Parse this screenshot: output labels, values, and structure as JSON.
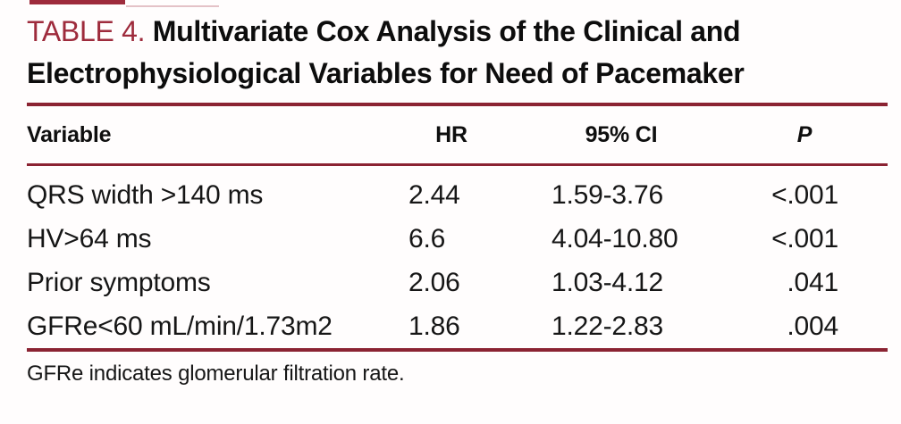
{
  "caption": {
    "label": "TABLE 4.",
    "title": "Multivariate Cox Analysis of the Clinical and Electrophysiological Variables for Need of Pacemaker"
  },
  "table": {
    "columns": {
      "variable": "Variable",
      "hr": "HR",
      "ci": "95% CI",
      "p": "P"
    },
    "rows": [
      {
        "variable": "QRS width >140 ms",
        "hr": "2.44",
        "ci": "1.59-3.76",
        "p": "<.001"
      },
      {
        "variable": "HV>64 ms",
        "hr": "6.6",
        "ci": "4.04-10.80",
        "p": "<.001"
      },
      {
        "variable": "Prior symptoms",
        "hr": "2.06",
        "ci": "1.03-4.12",
        "p": ".041"
      },
      {
        "variable": "GFRe<60 mL/min/1.73m2",
        "hr": "1.86",
        "ci": "1.22-2.83",
        "p": ".004"
      }
    ]
  },
  "footnote": "GFRe indicates glomerular filtration rate.",
  "colors": {
    "accent_red": "#9e2b3c",
    "rule_maroon": "#8b2332",
    "text": "#111111",
    "background": "#fffdfd"
  },
  "chart_data": {
    "type": "table",
    "title": "TABLE 4. Multivariate Cox Analysis of the Clinical and Electrophysiological Variables for Need of Pacemaker",
    "columns": [
      "Variable",
      "HR",
      "95% CI",
      "P"
    ],
    "rows": [
      [
        "QRS width >140 ms",
        "2.44",
        "1.59-3.76",
        "<.001"
      ],
      [
        "HV>64 ms",
        "6.6",
        "4.04-10.80",
        "<.001"
      ],
      [
        "Prior symptoms",
        "2.06",
        "1.03-4.12",
        ".041"
      ],
      [
        "GFRe<60 mL/min/1.73m2",
        "1.86",
        "1.22-2.83",
        ".004"
      ]
    ],
    "footnote": "GFRe indicates glomerular filtration rate."
  }
}
